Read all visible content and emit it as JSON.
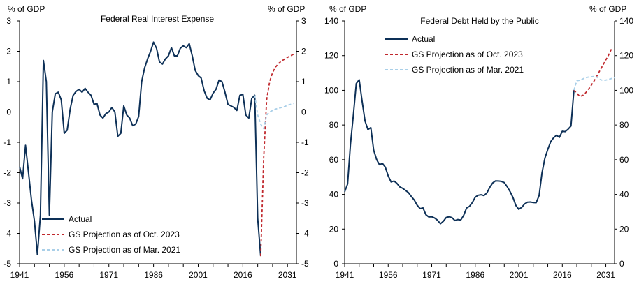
{
  "colors": {
    "actual": "#0d3057",
    "oct2023": "#c0282d",
    "mar2021": "#a9cfe8",
    "axis": "#000000",
    "zero": "#8c8c8c"
  },
  "chart_data": [
    {
      "type": "line",
      "title": "Federal Real Interest Expense",
      "ylabel_left": "% of GDP",
      "ylabel_right": "% of GDP",
      "ylim": [
        -5,
        3
      ],
      "yticks": [
        3,
        2,
        1,
        0,
        -1,
        -2,
        -3,
        -4,
        -5
      ],
      "xlim": [
        1941,
        2034
      ],
      "xticks": [
        1941,
        1956,
        1971,
        1986,
        2001,
        2016,
        2031
      ],
      "zero_line": true,
      "legend": [
        "Actual",
        "GS Projection as of Oct. 2023",
        "GS Projection as of Mar. 2021"
      ],
      "legend_position": "bottom-left",
      "series": [
        {
          "name": "Actual",
          "style": "solid",
          "x": [
            1941,
            1942,
            1943,
            1944,
            1945,
            1946,
            1947,
            1948,
            1949,
            1950,
            1951,
            1952,
            1953,
            1954,
            1955,
            1956,
            1957,
            1958,
            1959,
            1960,
            1961,
            1962,
            1963,
            1964,
            1965,
            1966,
            1967,
            1968,
            1969,
            1970,
            1971,
            1972,
            1973,
            1974,
            1975,
            1976,
            1977,
            1978,
            1979,
            1980,
            1981,
            1982,
            1983,
            1984,
            1985,
            1986,
            1987,
            1988,
            1989,
            1990,
            1991,
            1992,
            1993,
            1994,
            1995,
            1996,
            1997,
            1998,
            1999,
            2000,
            2001,
            2002,
            2003,
            2004,
            2005,
            2006,
            2007,
            2008,
            2009,
            2010,
            2011,
            2012,
            2013,
            2014,
            2015,
            2016,
            2017,
            2018,
            2019,
            2020,
            2021,
            2022
          ],
          "values": [
            -1.8,
            -2.2,
            -1.1,
            -2.0,
            -2.9,
            -3.6,
            -4.7,
            -3.4,
            1.7,
            1.0,
            -3.4,
            0.0,
            0.6,
            0.65,
            0.4,
            -0.7,
            -0.6,
            0.1,
            0.55,
            0.68,
            0.75,
            0.65,
            0.78,
            0.65,
            0.55,
            0.25,
            0.28,
            -0.1,
            -0.2,
            -0.05,
            0.0,
            0.15,
            0.0,
            -0.8,
            -0.7,
            0.2,
            -0.1,
            -0.2,
            -0.45,
            -0.4,
            -0.15,
            1.0,
            1.45,
            1.75,
            2.0,
            2.3,
            2.1,
            1.65,
            1.58,
            1.75,
            1.85,
            2.12,
            1.85,
            1.85,
            2.1,
            2.18,
            2.12,
            2.25,
            1.85,
            1.37,
            1.2,
            1.12,
            0.7,
            0.45,
            0.4,
            0.62,
            0.75,
            1.05,
            1.0,
            0.65,
            0.25,
            0.2,
            0.15,
            0.05,
            0.55,
            0.58,
            -0.1,
            -0.2,
            0.45,
            0.55,
            -3.5,
            -4.75
          ]
        },
        {
          "name": "GS Projection as of Oct. 2023",
          "style": "dashed",
          "x": [
            2022,
            2023,
            2024,
            2025,
            2026,
            2027,
            2028,
            2029,
            2030,
            2031,
            2032,
            2033
          ],
          "values": [
            -4.75,
            -1.5,
            0.4,
            1.0,
            1.3,
            1.48,
            1.6,
            1.68,
            1.74,
            1.8,
            1.85,
            1.9
          ]
        },
        {
          "name": "GS Projection as of Mar. 2021",
          "style": "dashed",
          "x": [
            2020,
            2021,
            2022,
            2023,
            2024,
            2025,
            2026,
            2027,
            2028,
            2029,
            2030,
            2031,
            2032,
            2033
          ],
          "values": [
            0.55,
            -0.1,
            -0.4,
            -0.55,
            -0.1,
            0.0,
            0.05,
            0.1,
            0.12,
            0.15,
            0.18,
            0.22,
            0.25,
            0.28
          ]
        }
      ]
    },
    {
      "type": "line",
      "title": "Federal Debt Held by the Public",
      "ylabel_left": "% of GDP",
      "ylabel_right": "% of GDP",
      "ylim": [
        0,
        140
      ],
      "yticks": [
        140,
        120,
        100,
        80,
        60,
        40,
        20,
        0
      ],
      "xlim": [
        1941,
        2034
      ],
      "xticks": [
        1941,
        1956,
        1971,
        1986,
        2001,
        2016,
        2031
      ],
      "zero_line": false,
      "legend": [
        "Actual",
        "GS Projection as of Oct. 2023",
        "GS Projection as of Mar. 2021"
      ],
      "legend_position": "top-left",
      "series": [
        {
          "name": "Actual",
          "style": "solid",
          "x": [
            1941,
            1942,
            1943,
            1944,
            1945,
            1946,
            1947,
            1948,
            1949,
            1950,
            1951,
            1952,
            1953,
            1954,
            1955,
            1956,
            1957,
            1958,
            1959,
            1960,
            1961,
            1962,
            1963,
            1964,
            1965,
            1966,
            1967,
            1968,
            1969,
            1970,
            1971,
            1972,
            1973,
            1974,
            1975,
            1976,
            1977,
            1978,
            1979,
            1980,
            1981,
            1982,
            1983,
            1984,
            1985,
            1986,
            1987,
            1988,
            1989,
            1990,
            1991,
            1992,
            1993,
            1994,
            1995,
            1996,
            1997,
            1998,
            1999,
            2000,
            2001,
            2002,
            2003,
            2004,
            2005,
            2006,
            2007,
            2008,
            2009,
            2010,
            2011,
            2012,
            2013,
            2014,
            2015,
            2016,
            2017,
            2018,
            2019,
            2020
          ],
          "values": [
            41.5,
            46,
            69,
            86,
            103.9,
            106.1,
            93.9,
            82.4,
            77.4,
            78.5,
            65.5,
            60.1,
            57.1,
            57.9,
            55.7,
            50.6,
            47.2,
            47.7,
            46.4,
            44.3,
            43.5,
            42.3,
            41.0,
            38.7,
            36.7,
            33.7,
            31.8,
            32.2,
            28.3,
            27.0,
            27.1,
            26.4,
            25.1,
            23.1,
            24.5,
            26.7,
            27.1,
            26.6,
            24.9,
            25.5,
            25.2,
            27.9,
            32.1,
            33.1,
            35.3,
            38.4,
            39.5,
            39.8,
            39.3,
            40.8,
            44.0,
            46.6,
            47.8,
            47.7,
            47.5,
            46.8,
            44.5,
            41.6,
            38.2,
            33.6,
            31.4,
            32.5,
            34.5,
            35.5,
            35.6,
            35.3,
            35.2,
            39.3,
            52.3,
            60.9,
            65.9,
            70.4,
            72.6,
            74.1,
            72.9,
            76.4,
            76.2,
            77.6,
            79.4,
            100.1
          ]
        },
        {
          "name": "GS Projection as of Oct. 2023",
          "style": "dashed",
          "x": [
            2020,
            2021,
            2022,
            2023,
            2024,
            2025,
            2026,
            2027,
            2028,
            2029,
            2030,
            2031,
            2032,
            2033
          ],
          "values": [
            100.1,
            98.4,
            96.5,
            97.0,
            98.5,
            100.5,
            103.0,
            105.5,
            108.5,
            111.5,
            114.5,
            117.5,
            120.5,
            124.0
          ]
        },
        {
          "name": "GS Projection as of Mar. 2021",
          "style": "dashed",
          "x": [
            2020,
            2021,
            2022,
            2023,
            2024,
            2025,
            2026,
            2027,
            2028,
            2029,
            2030,
            2031,
            2032,
            2033,
            2034
          ],
          "values": [
            100.1,
            105.5,
            105.8,
            106.5,
            107.3,
            107.6,
            107.8,
            108.0,
            107.6,
            106.3,
            105.7,
            105.9,
            106.3,
            106.8,
            107.3
          ]
        }
      ]
    }
  ]
}
